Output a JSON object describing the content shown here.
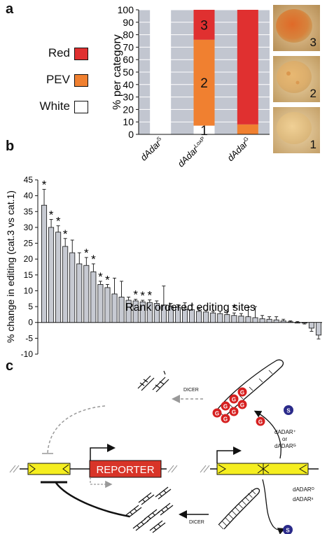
{
  "panels": {
    "a": "a",
    "b": "b",
    "c": "c"
  },
  "legend": {
    "red_label": "Red",
    "pev_label": "PEV",
    "white_label": "White",
    "red_color": "#e03030",
    "pev_color": "#f08030",
    "white_color": "#ffffff"
  },
  "chart_data": [
    {
      "type": "bar",
      "stacked": true,
      "categories": [
        "dAdar^S",
        "dAdar^LoxP",
        "dAdar^G"
      ],
      "category_base": [
        "dAdar",
        "dAdar",
        "dAdar"
      ],
      "category_sup": [
        "S",
        "LoxP",
        "G"
      ],
      "series": [
        {
          "name": "White",
          "values": [
            100,
            7,
            0
          ]
        },
        {
          "name": "PEV",
          "values": [
            0,
            69,
            8
          ]
        },
        {
          "name": "Red",
          "values": [
            0,
            24,
            92
          ]
        }
      ],
      "segment_labels": [
        "1",
        "2",
        "3"
      ],
      "ylabel": "% per category",
      "ylim": [
        0,
        100
      ],
      "yticks": [
        0,
        10,
        20,
        30,
        40,
        50,
        60,
        70,
        80,
        90,
        100
      ],
      "background": "#c2c6d0"
    },
    {
      "type": "bar",
      "ylabel": "% change in editing (cat.3 vs cat.1)",
      "xlabel": "Rank ordered editing sites",
      "ylim": [
        -10,
        45
      ],
      "yticks": [
        -10,
        -5,
        0,
        5,
        10,
        15,
        20,
        25,
        30,
        35,
        40,
        45
      ],
      "values": [
        37,
        30,
        28.5,
        24,
        22,
        18.5,
        18,
        16,
        12,
        11,
        9,
        8,
        7,
        6.8,
        6.5,
        6.3,
        6,
        5.5,
        5,
        4.8,
        4.2,
        4,
        3.5,
        3.3,
        3,
        2.8,
        2.5,
        2.2,
        2,
        1.8,
        1.5,
        1.2,
        1,
        0.8,
        0.5,
        0.2,
        0,
        -0.2,
        -1.8,
        -4
      ],
      "errors": [
        5,
        2.5,
        2,
        2.5,
        4,
        3.5,
        2.5,
        2.5,
        1,
        1,
        5,
        5,
        1,
        0.5,
        0.5,
        0.8,
        0.8,
        6,
        1,
        0.8,
        2,
        1.5,
        1,
        0.5,
        0.5,
        0.8,
        1,
        0.8,
        0.8,
        3,
        3.5,
        1,
        0.8,
        1,
        0.5,
        0.3,
        0.3,
        0.3,
        1,
        1.2
      ],
      "significant_indices": [
        0,
        1,
        2,
        3,
        6,
        7,
        8,
        9,
        13,
        14,
        15,
        27
      ],
      "marker": "*"
    }
  ],
  "eye_labels": [
    "3",
    "2",
    "1"
  ],
  "diagram": {
    "reporter": "REPORTER",
    "dicer_top": "DICER",
    "dicer_bottom": "DICER",
    "enzyme_plus": "dADAR⁺",
    "enzyme_or": "or",
    "enzyme_g": "dADARᴳ",
    "enzyme_o": "dADARᴼ",
    "enzyme_s": "dADARˢ",
    "g_label": "G",
    "s_label": "S"
  }
}
